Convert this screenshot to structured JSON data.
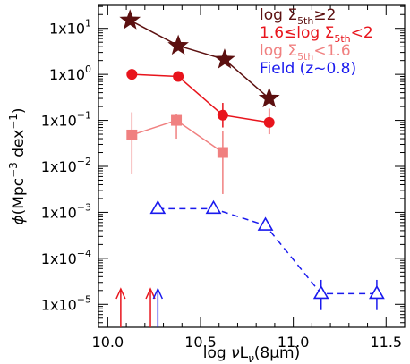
{
  "chart_data": {
    "type": "scatter",
    "title": "",
    "xlabel_parts": {
      "prefix": "log ",
      "nu": "ν",
      "L": "L",
      "sub": "ν",
      "suffix": "(8μm)"
    },
    "ylabel_parts": {
      "phi": "ϕ",
      "open": "(Mpc",
      "sup": "−3",
      "mid": " dex",
      "sup2": "−1",
      "close": ")"
    },
    "xlim": [
      9.95,
      11.6
    ],
    "ylim_log10": [
      -5.5,
      1.5
    ],
    "x_ticks": [
      {
        "value": 10.0,
        "label": "10.0"
      },
      {
        "value": 10.5,
        "label": "10.5"
      },
      {
        "value": 11.0,
        "label": "11.0"
      },
      {
        "value": 11.5,
        "label": "11.5"
      }
    ],
    "y_ticks": [
      {
        "exp": 1,
        "label": "1x10",
        "sup": "1"
      },
      {
        "exp": 0,
        "label": "1x10",
        "sup": "0"
      },
      {
        "exp": -1,
        "label": "1x10",
        "sup": "−1"
      },
      {
        "exp": -2,
        "label": "1x10",
        "sup": "−2"
      },
      {
        "exp": -3,
        "label": "1x10",
        "sup": "−3"
      },
      {
        "exp": -4,
        "label": "1x10",
        "sup": "−4"
      },
      {
        "exp": -5,
        "label": "1x10",
        "sup": "−5"
      }
    ],
    "series": [
      {
        "name": "log Σ5th≥2",
        "color": "#5c1010",
        "marker": "star",
        "line": "solid",
        "x": [
          10.12,
          10.38,
          10.63,
          10.87
        ],
        "y": [
          15.0,
          4.2,
          2.1,
          0.3
        ],
        "err_low": [
          null,
          null,
          null,
          null
        ],
        "err_high": [
          null,
          null,
          3.3,
          null
        ]
      },
      {
        "name": "1.6≤log Σ5th<2",
        "color": "#e8141c",
        "marker": "circle",
        "line": "solid",
        "x": [
          10.13,
          10.38,
          10.62,
          10.87
        ],
        "y": [
          1.0,
          0.9,
          0.13,
          0.09
        ],
        "err_low": [
          null,
          null,
          0.07,
          0.05
        ],
        "err_high": [
          null,
          null,
          0.24,
          0.18
        ]
      },
      {
        "name": "log Σ5th<1.6",
        "color": "#f08080",
        "marker": "square",
        "line": "solid",
        "x": [
          10.13,
          10.37,
          10.62
        ],
        "y": [
          0.048,
          0.1,
          0.02
        ],
        "err_low": [
          0.007,
          0.04,
          0.0025
        ],
        "err_high": [
          0.15,
          0.14,
          0.06
        ]
      },
      {
        "name": "Field (z~0.8)",
        "color": "#1a1aee",
        "marker": "triangle-open",
        "line": "dashed",
        "x": [
          10.27,
          10.57,
          10.85,
          11.15,
          11.45
        ],
        "y": [
          0.0012,
          0.0012,
          0.00052,
          1.7e-05,
          1.7e-05
        ],
        "err_low": [
          null,
          null,
          null,
          7.5e-06,
          7.5e-06
        ],
        "err_high": [
          null,
          null,
          null,
          3.4e-05,
          3.4e-05
        ]
      }
    ],
    "upper_limit_arrows": [
      {
        "x": 10.07,
        "color": "#e8141c"
      },
      {
        "x": 10.23,
        "color": "#e8141c"
      },
      {
        "x": 10.27,
        "color": "#1a1aee"
      }
    ],
    "legend": {
      "placement": "top-right",
      "entries": [
        {
          "color": "#5c1010",
          "parts": {
            "pre": "log Σ",
            "sub": "5th",
            "post": "≥2"
          }
        },
        {
          "color": "#e8141c",
          "parts": {
            "pre": "1.6≤log Σ",
            "sub": "5th",
            "post": "<2"
          }
        },
        {
          "color": "#f08080",
          "parts": {
            "pre": "log Σ",
            "sub": "5th",
            "post": "<1.6"
          }
        },
        {
          "color": "#1a1aee",
          "parts": {
            "pre": "Field (z~0.8)",
            "sub": "",
            "post": ""
          }
        }
      ]
    },
    "grid": false
  }
}
